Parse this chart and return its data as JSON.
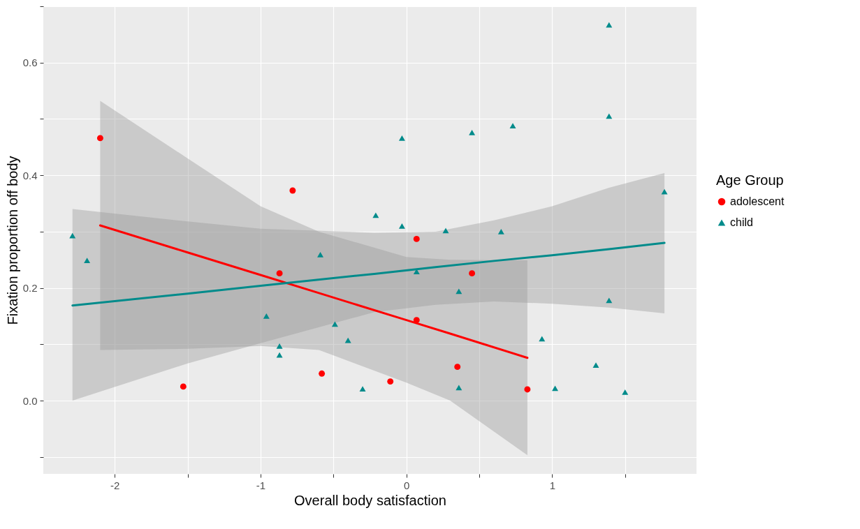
{
  "chart_data": {
    "type": "scatter",
    "xlabel": "Overall body satisfaction",
    "ylabel": "Fixation proportion off body",
    "legend_title": "Age Group",
    "legend": "right",
    "grid": true,
    "xlim": [
      -2.49,
      1.99
    ],
    "ylim": [
      -0.13,
      0.7
    ],
    "xticks": [
      -2,
      {
        "value": -1.5,
        "label": null
      },
      -1,
      {
        "value": -0.5,
        "label": null
      },
      0,
      {
        "value": 0.5,
        "label": null
      },
      1,
      {
        "value": 1.5,
        "label": null
      }
    ],
    "yticks": [
      {
        "value": -0.1,
        "label": null
      },
      {
        "value": 0,
        "label": "0.0"
      },
      {
        "value": 0.1,
        "label": null
      },
      0.2,
      {
        "value": 0.3,
        "label": null
      },
      0.4,
      {
        "value": 0.5,
        "label": null
      },
      0.6,
      {
        "value": 0.7,
        "label": null
      }
    ],
    "series": [
      {
        "name": "adolescent",
        "type": "scatter",
        "marker": "circle",
        "color": "#ff0000",
        "x": [
          -2.1,
          -1.53,
          -0.78,
          -0.87,
          -0.58,
          -0.11,
          0.07,
          0.07,
          0.35,
          0.45,
          0.83
        ],
        "values": [
          0.466,
          0.025,
          0.373,
          0.226,
          0.048,
          0.034,
          0.287,
          0.143,
          0.06,
          0.226,
          0.02
        ]
      },
      {
        "name": "child",
        "type": "scatter",
        "marker": "triangle",
        "color": "#008b8b",
        "x": [
          -2.29,
          -2.19,
          -0.96,
          -0.87,
          -0.87,
          -0.59,
          -0.49,
          -0.4,
          -0.3,
          -0.21,
          -0.03,
          -0.03,
          0.07,
          0.27,
          0.36,
          0.36,
          0.45,
          0.65,
          0.73,
          0.93,
          1.02,
          1.3,
          1.39,
          1.39,
          1.39,
          1.5,
          1.77
        ],
        "values": [
          0.293,
          0.249,
          0.15,
          0.097,
          0.081,
          0.259,
          0.136,
          0.107,
          0.021,
          0.329,
          0.31,
          0.466,
          0.229,
          0.302,
          0.194,
          0.023,
          0.476,
          0.3,
          0.488,
          0.11,
          0.022,
          0.063,
          0.667,
          0.505,
          0.178,
          0.015,
          0.371
        ]
      },
      {
        "type": "line",
        "color": "#ff0000",
        "line_style": "solid",
        "x": [
          -2.1,
          -1.5,
          -1.0,
          -0.6,
          0,
          0.3,
          0.83
        ],
        "values": [
          0.311,
          0.263,
          0.223,
          0.191,
          0.143,
          0.119,
          0.076
        ],
        "lower": [
          0.09,
          0.092,
          0.097,
          0.09,
          0.032,
          0.0,
          -0.097
        ],
        "upper": [
          0.532,
          0.43,
          0.345,
          0.3,
          0.255,
          0.25,
          0.249
        ]
      },
      {
        "type": "line",
        "color": "#008b8b",
        "line_style": "solid",
        "x": [
          -2.29,
          -1.5,
          -1.0,
          -0.22,
          0.2,
          0.6,
          1.0,
          1.39,
          1.77
        ],
        "values": [
          0.169,
          0.19,
          0.204,
          0.225,
          0.237,
          0.248,
          0.258,
          0.269,
          0.28
        ],
        "lower": [
          0.0,
          0.066,
          0.102,
          0.157,
          0.17,
          0.176,
          0.172,
          0.165,
          0.155
        ],
        "upper": [
          0.34,
          0.318,
          0.305,
          0.298,
          0.3,
          0.32,
          0.345,
          0.378,
          0.404
        ]
      }
    ]
  }
}
